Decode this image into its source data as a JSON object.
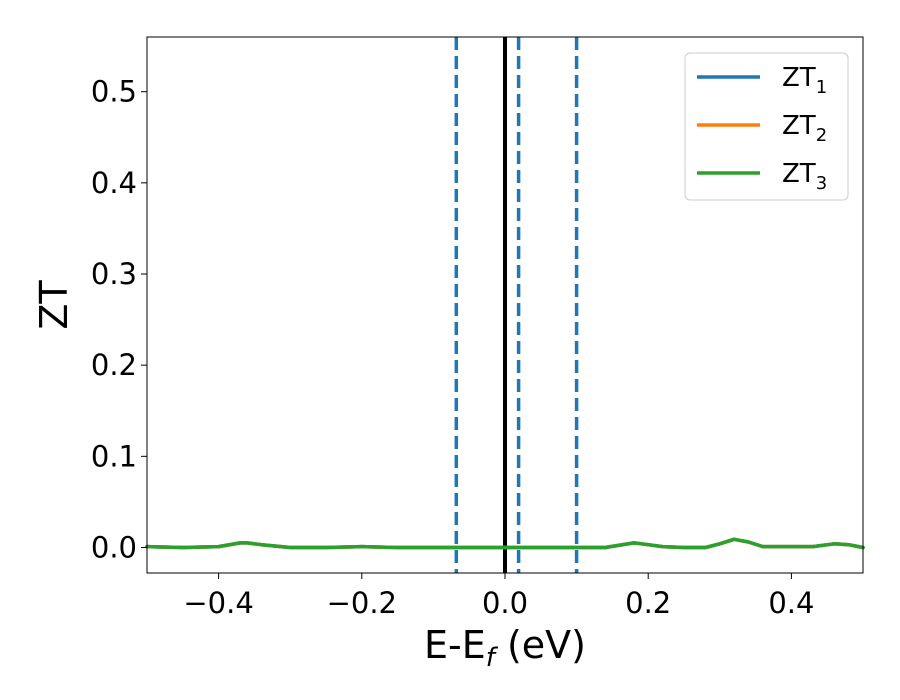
{
  "chart_data": {
    "type": "line",
    "title": "",
    "xlabel": {
      "main": "E-E",
      "sub": "f",
      "suffix": " (eV)"
    },
    "ylabel": "ZT",
    "xlim": [
      -0.5,
      0.5
    ],
    "ylim": [
      -0.028,
      0.56
    ],
    "x_ticks": [
      -0.4,
      -0.2,
      0.0,
      0.2,
      0.4
    ],
    "x_tick_labels": [
      "−0.4",
      "−0.2",
      "0.0",
      "0.2",
      "0.4"
    ],
    "y_ticks": [
      0.0,
      0.1,
      0.2,
      0.3,
      0.4,
      0.5
    ],
    "y_tick_labels": [
      "0.0",
      "0.1",
      "0.2",
      "0.3",
      "0.4",
      "0.5"
    ],
    "grid": false,
    "legend_position": "top-right",
    "series": [
      {
        "name": {
          "main": "ZT",
          "sub": "1"
        },
        "color": "#1f77b4",
        "x": [
          -0.5,
          -0.45,
          -0.4,
          -0.37,
          -0.36,
          -0.34,
          -0.3,
          -0.25,
          -0.2,
          -0.15,
          -0.1,
          -0.05,
          0.0,
          0.05,
          0.1,
          0.14,
          0.18,
          0.2,
          0.22,
          0.25,
          0.28,
          0.3,
          0.32,
          0.34,
          0.36,
          0.4,
          0.43,
          0.46,
          0.48,
          0.5
        ],
        "y": [
          0.001,
          0.0,
          0.001,
          0.005,
          0.005,
          0.003,
          0.0,
          0.0,
          0.001,
          0.0,
          0.0,
          0.0,
          0.0,
          0.0,
          0.0,
          0.0,
          0.005,
          0.003,
          0.001,
          0.0,
          0.0,
          0.004,
          0.009,
          0.006,
          0.001,
          0.001,
          0.001,
          0.004,
          0.003,
          0.0
        ]
      },
      {
        "name": {
          "main": "ZT",
          "sub": "2"
        },
        "color": "#ff7f0e",
        "x": [
          -0.5,
          -0.45,
          -0.4,
          -0.37,
          -0.36,
          -0.34,
          -0.3,
          -0.25,
          -0.2,
          -0.15,
          -0.1,
          -0.05,
          0.0,
          0.05,
          0.1,
          0.14,
          0.18,
          0.2,
          0.22,
          0.25,
          0.28,
          0.3,
          0.32,
          0.34,
          0.36,
          0.4,
          0.43,
          0.46,
          0.48,
          0.5
        ],
        "y": [
          0.001,
          0.0,
          0.001,
          0.005,
          0.005,
          0.003,
          0.0,
          0.0,
          0.001,
          0.0,
          0.0,
          0.0,
          0.0,
          0.0,
          0.0,
          0.0,
          0.005,
          0.003,
          0.001,
          0.0,
          0.0,
          0.004,
          0.009,
          0.006,
          0.001,
          0.001,
          0.001,
          0.004,
          0.003,
          0.0
        ]
      },
      {
        "name": {
          "main": "ZT",
          "sub": "3"
        },
        "color": "#2ca02c",
        "x": [
          -0.5,
          -0.45,
          -0.4,
          -0.37,
          -0.36,
          -0.34,
          -0.3,
          -0.25,
          -0.2,
          -0.15,
          -0.1,
          -0.05,
          0.0,
          0.05,
          0.1,
          0.14,
          0.18,
          0.2,
          0.22,
          0.25,
          0.28,
          0.3,
          0.32,
          0.34,
          0.36,
          0.4,
          0.43,
          0.46,
          0.48,
          0.5
        ],
        "y": [
          0.001,
          0.0,
          0.001,
          0.005,
          0.005,
          0.003,
          0.0,
          0.0,
          0.001,
          0.0,
          0.0,
          0.0,
          0.0,
          0.0,
          0.0,
          0.0,
          0.005,
          0.003,
          0.001,
          0.0,
          0.0,
          0.004,
          0.009,
          0.006,
          0.001,
          0.001,
          0.001,
          0.004,
          0.003,
          0.0
        ]
      }
    ],
    "vertical_lines": [
      {
        "x": -0.068,
        "style": "dashed",
        "color": "#1f77b4"
      },
      {
        "x": 0.0,
        "style": "solid",
        "color": "#000000"
      },
      {
        "x": 0.019,
        "style": "dashed",
        "color": "#1f77b4"
      },
      {
        "x": 0.1,
        "style": "dashed",
        "color": "#1f77b4"
      }
    ]
  }
}
